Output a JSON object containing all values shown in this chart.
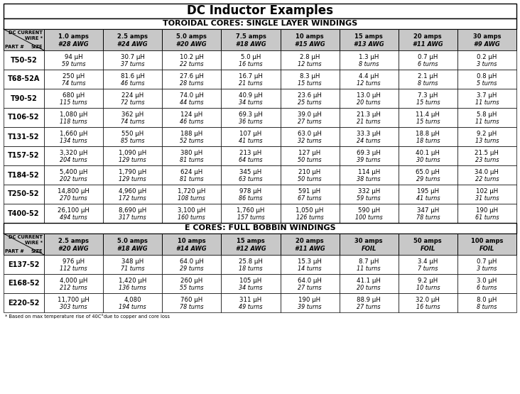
{
  "title": "DC Inductor Examples",
  "section1_title": "TOROIDAL CORES: SINGLE LAYER WINDINGS",
  "section2_title": "E CORES: FULL BOBBIN WINDINGS",
  "footnote": "* Based on max temperature rise of 40C°due to copper and core loss",
  "toroidal_header": [
    "",
    "1.0 amps\n#28 AWG",
    "2.5 amps\n#24 AWG",
    "5.0 amps\n#20 AWG",
    "7.5 amps\n#18 AWG",
    "10 amps\n#15 AWG",
    "15 amps\n#13 AWG",
    "20 amps\n#11 AWG",
    "30 amps\n#9 AWG"
  ],
  "toroidal_data": [
    [
      "T50-52",
      "94 μH\n59 turns",
      "30.7 μH\n37 turns",
      "10.2 μH\n22 turns",
      "5.0 μH\n16 turns",
      "2.8 μH\n12 turns",
      "1.3 μH\n8 turns",
      "0.7 μH\n6 turns",
      "0.2 μH\n3 turns"
    ],
    [
      "T68-52A",
      "250 μH\n74 turns",
      "81.6 μH\n46 turns",
      "27.6 μH\n28 turns",
      "16.7 μH\n21 turns",
      "8.3 μH\n15 turns",
      "4.4 μH\n12 turns",
      "2.1 μH\n8 turns",
      "0.8 μH\n5 turns"
    ],
    [
      "T90-52",
      "680 μH\n115 turns",
      "224 μH\n72 turns",
      "74.0 μH\n44 turns",
      "40.9 μH\n34 turns",
      "23.6 μH\n25 turns",
      "13.0 μH\n20 turns",
      "7.3 μH\n15 turns",
      "3.7 μH\n11 turns"
    ],
    [
      "T106-52",
      "1,080 μH\n118 turns",
      "362 μH\n74 turns",
      "124 μH\n46 turns",
      "69.3 μH\n36 turns",
      "39.0 μH\n27 turns",
      "21.3 μH\n21 turns",
      "11.4 μH\n15 turns",
      "5.8 μH\n11 turns"
    ],
    [
      "T131-52",
      "1,660 μH\n134 turns",
      "550 μH\n85 turns",
      "188 μH\n52 turns",
      "107 μH\n41 turns",
      "63.0 μH\n32 turns",
      "33.3 μH\n24 turns",
      "18.8 μH\n18 turns",
      "9.2 μH\n13 turns"
    ],
    [
      "T157-52",
      "3,320 μH\n204 turns",
      "1,090 μH\n129 turns",
      "380 μH\n81 turns",
      "213 μH\n64 turns",
      "127 μH\n50 turns",
      "69.3 μH\n39 turns",
      "40.1 μH\n30 turns",
      "21.5 μH\n23 turns"
    ],
    [
      "T184-52",
      "5,400 μH\n202 turns",
      "1,790 μH\n129 turns",
      "624 μH\n81 turns",
      "345 μH\n63 turns",
      "210 μH\n50 turns",
      "114 μH\n38 turns",
      "65.0 μH\n29 turns",
      "34.0 μH\n22 turns"
    ],
    [
      "T250-52",
      "14,800 μH\n270 turns",
      "4,960 μH\n172 turns",
      "1,720 μH\n108 turns",
      "978 μH\n86 turns",
      "591 μH\n67 turns",
      "332 μH\n59 turns",
      "195 μH\n41 turns",
      "102 μH\n31 turns"
    ],
    [
      "T400-52",
      "26,100 μH\n494 turns",
      "8,690 μH\n317 turns",
      "3,100 μH\n160 turns",
      "1,760 μH\n157 turns",
      "1,050 μH\n126 turns",
      "590 μH\n100 turns",
      "347 μH\n78 turns",
      "190 μH\n61 turns"
    ]
  ],
  "ecore_header": [
    "",
    "2.5 amps\n#20 AWG",
    "5.0 amps\n#18 AWG",
    "10 amps\n#14 AWG",
    "15 amps\n#12 AWG",
    "20 amps\n#11 AWG",
    "30 amps\nFOIL",
    "50 amps\nFOIL",
    "100 amps\nFOIL"
  ],
  "ecore_data": [
    [
      "E137-52",
      "976 μH\n112 turns",
      "348 μH\n71 turns",
      "64.0 μH\n29 turns",
      "25.8 μH\n18 turns",
      "15.3 μH\n14 turns",
      "8.7 μH\n11 turns",
      "3.4 μH\n7 turns",
      "0.7 μH\n3 turns"
    ],
    [
      "E168-52",
      "4,000 μH\n212 turns",
      "1,420 μH\n136 turns",
      "260 μH\n55 turns",
      "105 μH\n34 turns",
      "64.0 μH\n27 turns",
      "41.1 μH\n20 turns",
      "9.2 μH\n10 turns",
      "3.0 μH\n6 turns"
    ],
    [
      "E220-52",
      "11,700 μH\n303 turns",
      "4,080\n194 turns",
      "760 μH\n78 turns",
      "311 μH\n49 turns",
      "190 μH\n39 turns",
      "88.9 μH\n27 turns",
      "32.0 μH\n16 turns",
      "8.0 μH\n8 turns"
    ]
  ],
  "col_header_diag_top": "DC CURRENT\nWIRE *",
  "col_header_diag_bot_left": "PART #",
  "col_header_diag_bot_right": "SIZE",
  "title_fontsize": 12,
  "section_fontsize": 8,
  "header_fontsize": 6.0,
  "data_fontsize": 6.2,
  "turns_fontsize": 5.8,
  "partno_fontsize": 7.0,
  "header_bg": "#c8c8c8",
  "row_bg_even": "#ffffff",
  "row_bg_odd": "#ffffff",
  "border_color": "#000000"
}
